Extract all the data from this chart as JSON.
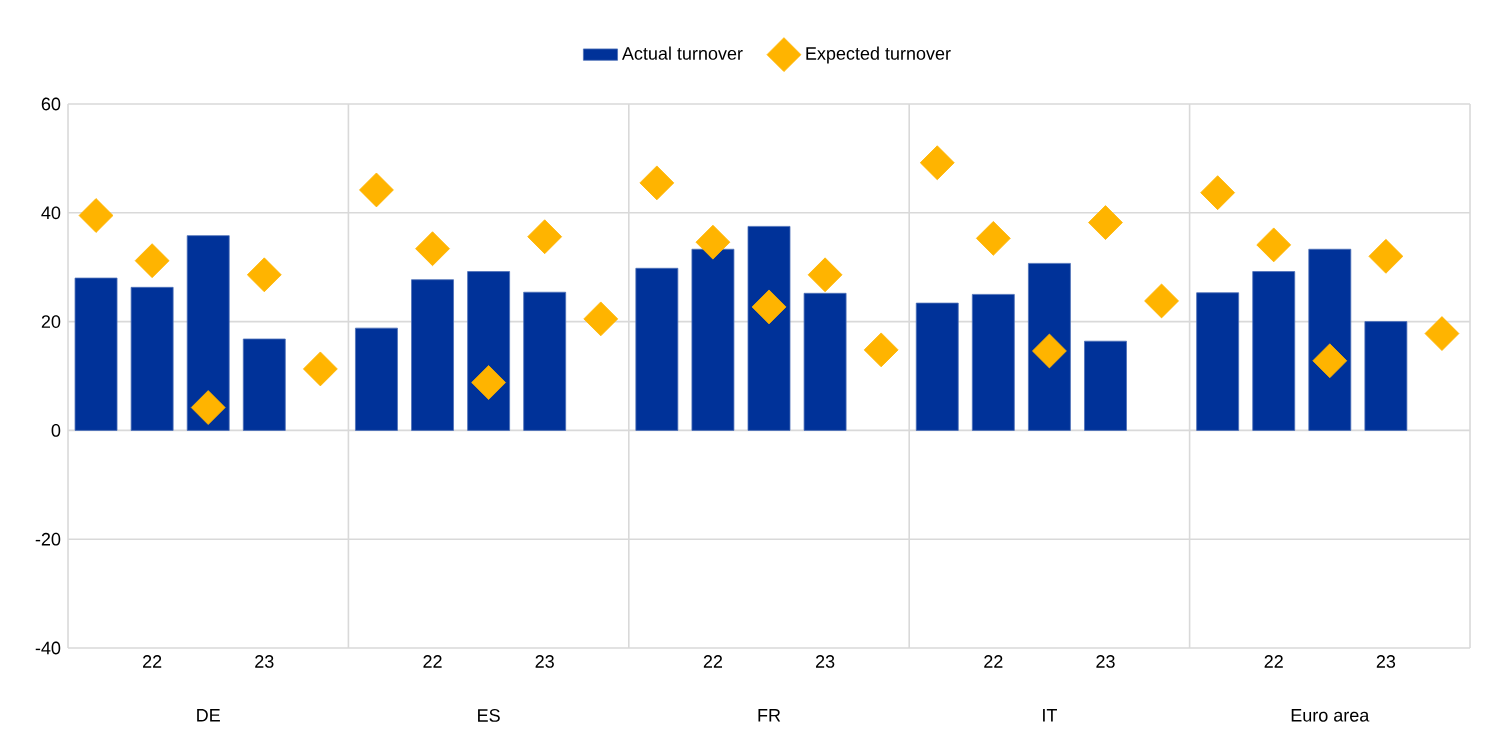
{
  "chart_data": {
    "type": "bar",
    "categories": [
      null,
      "22",
      null,
      "23",
      null,
      null,
      "22",
      null,
      "23",
      null,
      null,
      "22",
      null,
      "23",
      null,
      null,
      "22",
      null,
      "23",
      null,
      null,
      "22",
      null,
      "23",
      null
    ],
    "series": [
      {
        "name": "Actual turnover",
        "color": "#003299",
        "values": [
          28.0,
          26.3,
          35.8,
          16.8,
          null,
          18.8,
          27.7,
          29.2,
          25.4,
          null,
          29.8,
          33.3,
          37.5,
          25.2,
          null,
          23.4,
          25.0,
          30.7,
          16.4,
          null,
          25.3,
          29.2,
          33.3,
          20.0,
          null
        ]
      },
      {
        "name": "Expected turnover",
        "type": "scatter",
        "marker": "diamond",
        "color": "#ffb400",
        "values": [
          39.5,
          31.2,
          4.2,
          28.6,
          11.3,
          44.2,
          33.4,
          8.8,
          35.6,
          20.5,
          45.5,
          34.6,
          22.7,
          28.6,
          14.8,
          49.2,
          35.3,
          14.6,
          38.2,
          23.8,
          43.7,
          34.1,
          12.8,
          32.0,
          17.8
        ]
      }
    ],
    "annotations": [
      "DE",
      "ES",
      "FR",
      "IT",
      "Euro area"
    ],
    "ylim": [
      -40,
      60
    ],
    "yticks": [
      -40,
      -20,
      0,
      20,
      40,
      60
    ],
    "grid": "y",
    "legend": "top"
  }
}
